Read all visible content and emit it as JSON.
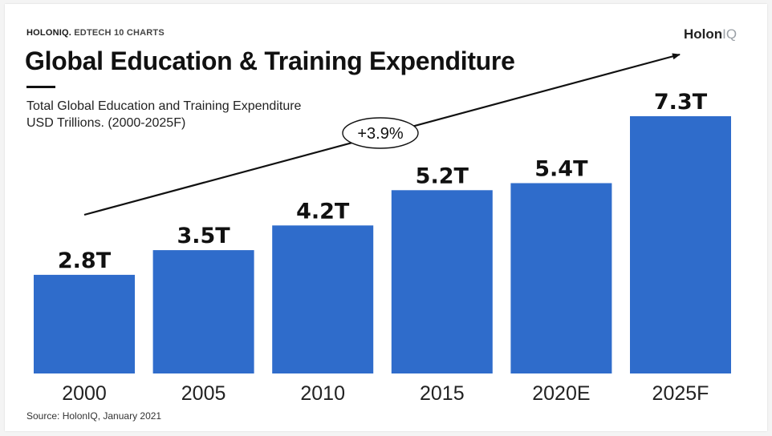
{
  "header": {
    "brand_bold": "HOLONIQ.",
    "brand_rest": "EDTECH 10 CHARTS",
    "logo_main": "Holon",
    "logo_suffix": "IQ"
  },
  "title": "Global Education & Training Expenditure",
  "subtitle_line1": "Total Global Education and Training Expenditure",
  "subtitle_line2": "USD Trillions. (2000-2025F)",
  "source": "Source: HolonIQ, January 2021",
  "colors": {
    "bar": "#2f6ccb",
    "text": "#111111"
  },
  "chart_data": {
    "type": "bar",
    "title": "Global Education & Training Expenditure",
    "subtitle": "Total Global Education and Training Expenditure USD Trillions. (2000-2025F)",
    "categories": [
      "2000",
      "2005",
      "2010",
      "2015",
      "2020E",
      "2025F"
    ],
    "values": [
      2.8,
      3.5,
      4.2,
      5.2,
      5.4,
      7.3
    ],
    "data_labels": [
      "2.8T",
      "3.5T",
      "4.2T",
      "5.2T",
      "5.4T",
      "7.3T"
    ],
    "ylim": [
      0,
      7.3
    ],
    "grid": false,
    "legend": "none",
    "annotation": "+3.9%"
  }
}
